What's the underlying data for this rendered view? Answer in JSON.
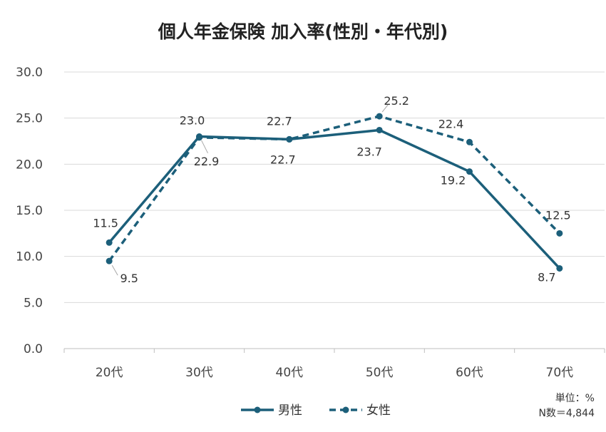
{
  "chart_data": {
    "type": "line",
    "title": "個人年金保険 加入率(性別・年代別)",
    "categories": [
      "20代",
      "30代",
      "40代",
      "50代",
      "60代",
      "70代"
    ],
    "series": [
      {
        "name": "男性",
        "values": [
          11.5,
          23.0,
          22.7,
          23.7,
          19.2,
          8.7
        ],
        "style": "solid",
        "color": "#1c5f7a"
      },
      {
        "name": "女性",
        "values": [
          9.5,
          22.9,
          22.7,
          25.2,
          22.4,
          12.5
        ],
        "style": "dashed",
        "color": "#1c5f7a"
      }
    ],
    "ylim": [
      0,
      30
    ],
    "yticks": [
      "0.0",
      "5.0",
      "10.0",
      "15.0",
      "20.0",
      "25.0",
      "30.0"
    ],
    "grid": true,
    "legend_position": "bottom",
    "data_labels": {
      "男性": [
        "11.5",
        "23.0",
        "22.7",
        "23.7",
        "19.2",
        "8.7"
      ],
      "女性": [
        "9.5",
        "22.9",
        "22.7",
        "25.2",
        "22.4",
        "12.5"
      ]
    },
    "notes": [
      "単位：%",
      "N数＝4,844"
    ]
  }
}
